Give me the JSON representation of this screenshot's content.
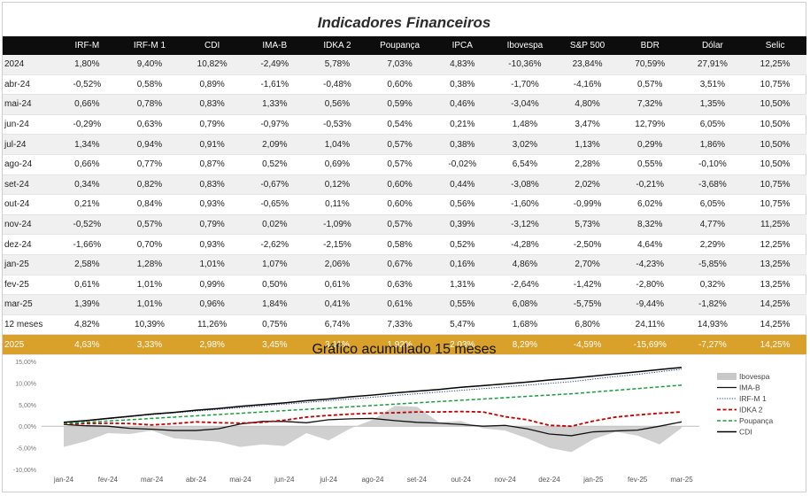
{
  "table": {
    "title": "Indicadores Financeiros",
    "columns": [
      "",
      "IRF-M",
      "IRF-M 1",
      "CDI",
      "IMA-B",
      "IDKA 2",
      "Poupança",
      "IPCA",
      "Ibovespa",
      "S&P 500",
      "BDR",
      "Dólar",
      "Selic"
    ],
    "rows": [
      [
        "2024",
        "1,80%",
        "9,40%",
        "10,82%",
        "-2,49%",
        "5,78%",
        "7,03%",
        "4,83%",
        "-10,36%",
        "23,84%",
        "70,59%",
        "27,91%",
        "12,25%"
      ],
      [
        "abr-24",
        "-0,52%",
        "0,58%",
        "0,89%",
        "-1,61%",
        "-0,48%",
        "0,60%",
        "0,38%",
        "-1,70%",
        "-4,16%",
        "0,57%",
        "3,51%",
        "10,75%"
      ],
      [
        "mai-24",
        "0,66%",
        "0,78%",
        "0,83%",
        "1,33%",
        "0,56%",
        "0,59%",
        "0,46%",
        "-3,04%",
        "4,80%",
        "7,32%",
        "1,35%",
        "10,50%"
      ],
      [
        "jun-24",
        "-0,29%",
        "0,63%",
        "0,79%",
        "-0,97%",
        "-0,53%",
        "0,54%",
        "0,21%",
        "1,48%",
        "3,47%",
        "12,79%",
        "6,05%",
        "10,50%"
      ],
      [
        "jul-24",
        "1,34%",
        "0,94%",
        "0,91%",
        "2,09%",
        "1,04%",
        "0,57%",
        "0,38%",
        "3,02%",
        "1,13%",
        "0,29%",
        "1,86%",
        "10,50%"
      ],
      [
        "ago-24",
        "0,66%",
        "0,77%",
        "0,87%",
        "0,52%",
        "0,69%",
        "0,57%",
        "-0,02%",
        "6,54%",
        "2,28%",
        "0,55%",
        "-0,10%",
        "10,50%"
      ],
      [
        "set-24",
        "0,34%",
        "0,82%",
        "0,83%",
        "-0,67%",
        "0,12%",
        "0,60%",
        "0,44%",
        "-3,08%",
        "2,02%",
        "-0,21%",
        "-3,68%",
        "10,75%"
      ],
      [
        "out-24",
        "0,21%",
        "0,84%",
        "0,93%",
        "-0,65%",
        "0,11%",
        "0,60%",
        "0,56%",
        "-1,60%",
        "-0,99%",
        "6,02%",
        "6,05%",
        "10,75%"
      ],
      [
        "nov-24",
        "-0,52%",
        "0,57%",
        "0,79%",
        "0,02%",
        "-1,09%",
        "0,57%",
        "0,39%",
        "-3,12%",
        "5,73%",
        "8,32%",
        "4,77%",
        "11,25%"
      ],
      [
        "dez-24",
        "-1,66%",
        "0,70%",
        "0,93%",
        "-2,62%",
        "-2,15%",
        "0,58%",
        "0,52%",
        "-4,28%",
        "-2,50%",
        "4,64%",
        "2,29%",
        "12,25%"
      ],
      [
        "jan-25",
        "2,58%",
        "1,28%",
        "1,01%",
        "1,07%",
        "2,06%",
        "0,67%",
        "0,16%",
        "4,86%",
        "2,70%",
        "-4,23%",
        "-5,85%",
        "13,25%"
      ],
      [
        "fev-25",
        "0,61%",
        "1,01%",
        "0,99%",
        "0,50%",
        "0,61%",
        "0,63%",
        "1,31%",
        "-2,64%",
        "-1,42%",
        "-2,80%",
        "0,32%",
        "13,25%"
      ],
      [
        "mar-25",
        "1,39%",
        "1,01%",
        "0,96%",
        "1,84%",
        "0,41%",
        "0,61%",
        "0,55%",
        "6,08%",
        "-5,75%",
        "-9,44%",
        "-1,82%",
        "14,25%"
      ],
      [
        "12 meses",
        "4,82%",
        "10,39%",
        "11,26%",
        "0,75%",
        "6,74%",
        "7,33%",
        "5,47%",
        "1,68%",
        "6,80%",
        "24,11%",
        "14,93%",
        "14,25%"
      ],
      [
        "2025",
        "4,63%",
        "3,33%",
        "2,98%",
        "3,45%",
        "3,11%",
        "1,92%",
        "2,03%",
        "8,29%",
        "-4,59%",
        "-15,69%",
        "-7,27%",
        "14,25%"
      ]
    ]
  },
  "chart_data": {
    "type": "area",
    "title": "Gráfico acumulado 15 meses",
    "categories": [
      "jan-24",
      "fev-24",
      "mar-24",
      "abr-24",
      "mai-24",
      "jun-24",
      "jul-24",
      "ago-24",
      "set-24",
      "out-24",
      "nov-24",
      "dez-24",
      "jan-25",
      "fev-25",
      "mar-25"
    ],
    "y_ticks": [
      "15,00%",
      "10,00%",
      "5,00%",
      "0,00%",
      "-5,00%",
      "-10,00%"
    ],
    "ylim": [
      -10,
      15
    ],
    "x": [
      0,
      0.5,
      1,
      1.5,
      2,
      2.5,
      3,
      3.5,
      4,
      4.5,
      5,
      5.5,
      6,
      6.5,
      7,
      7.5,
      8,
      8.5,
      9,
      9.5,
      10,
      10.5,
      11,
      11.5,
      12,
      12.5,
      13,
      13.5,
      14
    ],
    "series": [
      {
        "name": "Ibovespa",
        "style": "area",
        "color": "#c8c8c8",
        "values": [
          -4.8,
          -3.5,
          -1.6,
          -1.8,
          -1.0,
          -2.8,
          -3.2,
          -3.6,
          -4.8,
          -4.2,
          -4.6,
          -1.6,
          -3.3,
          -0.5,
          1.5,
          4.7,
          4.5,
          0.9,
          1.2,
          -0.5,
          -1.0,
          -2.8,
          -5.0,
          -6.0,
          -3.0,
          -1.3,
          -2.2,
          -4.2,
          -0.4
        ]
      },
      {
        "name": "IMA-B",
        "style": "solid",
        "color": "#111111",
        "values": [
          0.4,
          0.1,
          0.0,
          -0.5,
          -0.7,
          -1.0,
          -1.0,
          -0.6,
          0.5,
          1.1,
          1.1,
          0.8,
          1.5,
          1.7,
          1.8,
          1.3,
          0.9,
          0.7,
          0.4,
          0.0,
          0.2,
          -0.6,
          -1.8,
          -2.2,
          -1.3,
          -1.1,
          -0.9,
          0.0,
          1.0
        ]
      },
      {
        "name": "IRF-M 1",
        "style": "dotted",
        "color": "#1f3c88",
        "values": [
          0.8,
          1.2,
          1.7,
          2.2,
          2.7,
          3.1,
          3.5,
          3.9,
          4.3,
          4.7,
          5.1,
          5.5,
          5.9,
          6.3,
          6.7,
          7.1,
          7.5,
          7.9,
          8.3,
          8.7,
          9.1,
          9.5,
          9.9,
          10.3,
          10.9,
          11.5,
          12.0,
          12.6,
          13.2
        ]
      },
      {
        "name": "IDKA 2",
        "style": "dashed",
        "color": "#c00000",
        "values": [
          0.5,
          0.6,
          0.7,
          0.6,
          0.3,
          0.6,
          1.0,
          0.8,
          0.7,
          0.9,
          1.4,
          2.1,
          2.5,
          2.8,
          3.0,
          3.1,
          3.3,
          3.3,
          3.4,
          3.3,
          2.2,
          1.5,
          0.2,
          0.0,
          1.2,
          2.1,
          2.6,
          3.0,
          3.3
        ]
      },
      {
        "name": "Poupança",
        "style": "dashed",
        "color": "#1a9c3e",
        "values": [
          0.6,
          0.9,
          1.2,
          1.5,
          1.8,
          2.1,
          2.4,
          2.7,
          3.0,
          3.3,
          3.6,
          3.9,
          4.2,
          4.5,
          4.8,
          5.1,
          5.4,
          5.7,
          6.0,
          6.3,
          6.6,
          6.9,
          7.2,
          7.5,
          7.9,
          8.3,
          8.7,
          9.1,
          9.5
        ]
      },
      {
        "name": "CDI",
        "style": "solid",
        "color": "#000000",
        "values": [
          0.9,
          1.3,
          1.8,
          2.3,
          2.8,
          3.2,
          3.7,
          4.1,
          4.6,
          5.0,
          5.4,
          5.9,
          6.3,
          6.8,
          7.2,
          7.7,
          8.1,
          8.5,
          9.0,
          9.4,
          9.8,
          10.2,
          10.7,
          11.1,
          11.6,
          12.1,
          12.6,
          13.1,
          13.6
        ]
      }
    ]
  }
}
